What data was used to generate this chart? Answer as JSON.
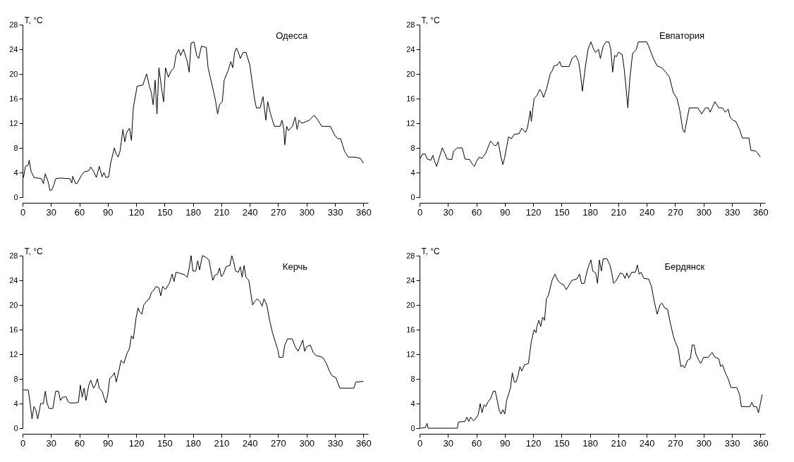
{
  "chart_data": [
    {
      "type": "line",
      "title": "Одесса",
      "ylabel": "T, °C",
      "color": "#000000",
      "xlim": [
        0,
        365
      ],
      "xticks": [
        0,
        30,
        60,
        90,
        120,
        150,
        180,
        210,
        240,
        270,
        300,
        330,
        360
      ],
      "ylim": [
        0,
        28
      ],
      "yticks": [
        0,
        4,
        8,
        12,
        16,
        20,
        24,
        28
      ],
      "x": [
        1,
        3,
        6,
        7,
        9,
        12,
        20,
        22,
        24,
        27,
        29,
        31,
        33,
        35,
        40,
        50,
        52,
        53,
        56,
        58,
        62,
        65,
        70,
        72,
        75,
        78,
        81,
        84,
        86,
        88,
        91,
        93,
        97,
        99,
        101,
        103,
        106,
        108,
        110,
        113,
        115,
        117,
        121,
        127,
        131,
        134,
        136,
        138,
        140,
        142,
        144,
        147,
        149,
        151,
        154,
        157,
        160,
        162,
        165,
        167,
        170,
        174,
        176,
        178,
        181,
        184,
        186,
        189,
        194,
        196,
        199,
        202,
        204,
        206,
        208,
        211,
        213,
        217,
        220,
        222,
        224,
        226,
        228,
        230,
        233,
        236,
        240,
        245,
        247,
        251,
        254,
        257,
        259,
        262,
        264,
        266,
        272,
        274,
        276,
        277,
        279,
        281,
        285,
        288,
        290,
        292,
        295,
        303,
        308,
        312,
        316,
        325,
        330,
        333,
        336,
        340,
        344,
        351,
        357,
        360
      ],
      "values": [
        3.2,
        5,
        5.2,
        6,
        4.2,
        3.2,
        3,
        2.2,
        3.8,
        2.5,
        1.1,
        1.2,
        2,
        3,
        3.1,
        3,
        2.3,
        3.4,
        2.2,
        2.3,
        3.5,
        4.1,
        4.3,
        4.9,
        4.2,
        3.2,
        5,
        3.3,
        4,
        3.2,
        3.3,
        5.5,
        8,
        7,
        6.5,
        7.5,
        11,
        9,
        10.5,
        11.2,
        9.2,
        14.5,
        18,
        18.2,
        20,
        18,
        17,
        15,
        19,
        13.5,
        21,
        17.5,
        15.5,
        21,
        19.5,
        20.5,
        21,
        23,
        24,
        23,
        24,
        22,
        20.3,
        25,
        25.2,
        23,
        22.5,
        24.5,
        24.3,
        21,
        19,
        17,
        15.5,
        13.5,
        15,
        15.5,
        19,
        20.5,
        22,
        21,
        23.5,
        24.2,
        23.5,
        22.5,
        23.5,
        23.5,
        21.5,
        16,
        14.5,
        14.5,
        16.3,
        12.5,
        15.5,
        13.5,
        12.5,
        11.5,
        11.5,
        12.5,
        11,
        8.5,
        11.5,
        10.8,
        11.5,
        13,
        11,
        12.5,
        12,
        12.5,
        13.3,
        12.5,
        11.5,
        11.5,
        10,
        9.5,
        9.5,
        7.5,
        6.5,
        6.5,
        6.3,
        5.5
      ]
    },
    {
      "type": "line",
      "title": "Евпатория",
      "ylabel": "T, °C",
      "color": "#000000",
      "xlim": [
        0,
        365
      ],
      "xticks": [
        0,
        30,
        60,
        90,
        120,
        150,
        180,
        210,
        240,
        270,
        300,
        330,
        360
      ],
      "ylim": [
        0,
        28
      ],
      "yticks": [
        0,
        4,
        8,
        12,
        16,
        20,
        24,
        28
      ],
      "x": [
        1,
        3,
        6,
        8,
        12,
        14,
        16,
        18,
        20,
        22,
        24,
        27,
        29,
        34,
        36,
        40,
        45,
        48,
        53,
        56,
        58,
        60,
        63,
        66,
        70,
        75,
        79,
        81,
        83,
        86,
        88,
        90,
        94,
        97,
        100,
        105,
        108,
        112,
        114,
        117,
        118,
        121,
        124,
        127,
        129,
        131,
        134,
        138,
        140,
        142,
        146,
        148,
        150,
        158,
        161,
        165,
        168,
        170,
        172,
        175,
        178,
        181,
        184,
        186,
        189,
        191,
        194,
        197,
        200,
        202,
        204,
        206,
        208,
        210,
        214,
        216,
        218,
        220,
        222,
        225,
        229,
        231,
        240,
        242,
        247,
        251,
        256,
        260,
        264,
        268,
        272,
        275,
        278,
        280,
        283,
        285,
        294,
        298,
        302,
        305,
        307,
        309,
        312,
        316,
        320,
        323,
        326,
        328,
        331,
        334,
        338,
        341,
        348,
        350,
        355,
        357,
        360
      ],
      "values": [
        6.3,
        7,
        7,
        6.2,
        6,
        6.8,
        5.8,
        5,
        6,
        7,
        8,
        7,
        6.2,
        6.1,
        7.5,
        8,
        8,
        6.2,
        6.1,
        5.3,
        5,
        5.8,
        6.5,
        6.3,
        7.2,
        9.1,
        8.4,
        8.4,
        9,
        6.5,
        5.3,
        6.5,
        9.8,
        9.5,
        10.2,
        10.3,
        11.2,
        10.5,
        11.3,
        14,
        12.3,
        16,
        16.5,
        17.5,
        17,
        16.2,
        17.5,
        20,
        20.5,
        21.3,
        21.5,
        22,
        21.2,
        21.2,
        22.5,
        23,
        22,
        20,
        17.2,
        21,
        24,
        25.2,
        24,
        23.5,
        24,
        22.5,
        24.5,
        25.2,
        25.2,
        24,
        20.3,
        23,
        22.8,
        23.5,
        23.2,
        21,
        18,
        14.5,
        19,
        23.3,
        24,
        25.2,
        25.2,
        24.5,
        22.5,
        21.3,
        21,
        20.3,
        19.5,
        17,
        16,
        14,
        11,
        10.5,
        13,
        14.5,
        14.5,
        13.5,
        14.5,
        14.5,
        13.8,
        14.5,
        15.5,
        14.5,
        14.5,
        13.8,
        14.3,
        13,
        12.5,
        12.3,
        11,
        9.6,
        9.6,
        7.6,
        7.5,
        7.2,
        6.5
      ]
    },
    {
      "type": "line",
      "title": "Керчь",
      "ylabel": "T, °C",
      "color": "#000000",
      "xlim": [
        0,
        365
      ],
      "xticks": [
        0,
        30,
        60,
        90,
        120,
        150,
        180,
        210,
        240,
        270,
        300,
        330,
        360
      ],
      "ylim": [
        0,
        28
      ],
      "yticks": [
        0,
        4,
        8,
        12,
        16,
        20,
        24,
        28
      ],
      "x": [
        1,
        6,
        8,
        10,
        12,
        14,
        16,
        18,
        19,
        22,
        24,
        26,
        28,
        32,
        35,
        38,
        40,
        42,
        46,
        48,
        50,
        56,
        59,
        61,
        63,
        65,
        67,
        70,
        72,
        75,
        77,
        79,
        81,
        84,
        86,
        88,
        90,
        92,
        95,
        97,
        99,
        102,
        104,
        107,
        110,
        113,
        115,
        117,
        120,
        122,
        124,
        126,
        128,
        132,
        134,
        136,
        139,
        141,
        144,
        146,
        148,
        151,
        155,
        158,
        160,
        162,
        165,
        171,
        174,
        176,
        178,
        180,
        183,
        185,
        187,
        190,
        193,
        197,
        199,
        201,
        203,
        206,
        208,
        210,
        212,
        215,
        219,
        221,
        223,
        225,
        228,
        230,
        232,
        234,
        236,
        239,
        241,
        243,
        245,
        248,
        251,
        253,
        255,
        258,
        261,
        264,
        267,
        270,
        271,
        275,
        277,
        280,
        285,
        288,
        291,
        294,
        296,
        298,
        300,
        304,
        307,
        310,
        317,
        321,
        324,
        327,
        331,
        335,
        346,
        350,
        352,
        360
      ],
      "values": [
        6.2,
        6.2,
        4,
        1.5,
        3.5,
        3,
        1.5,
        3,
        4,
        4,
        6,
        4,
        3.2,
        3.2,
        6,
        6,
        4.5,
        5,
        5.1,
        4.3,
        4.1,
        4.1,
        4.2,
        7,
        5,
        6.5,
        4.5,
        7,
        7.8,
        6.5,
        7,
        8,
        6.5,
        6,
        5,
        4.1,
        5.5,
        8,
        8.5,
        9,
        7.5,
        9.5,
        11,
        10.5,
        12,
        13,
        15,
        14.5,
        18,
        19.5,
        18.8,
        18.5,
        20,
        20.8,
        21,
        22,
        22.5,
        23,
        22.8,
        21.5,
        23,
        22.5,
        23.5,
        25,
        23.8,
        25.3,
        25.2,
        24.9,
        24.5,
        26,
        28,
        25.5,
        25.5,
        27.2,
        25.7,
        28,
        27.8,
        27.3,
        25.5,
        24,
        24.8,
        25,
        26,
        24.6,
        25,
        26.2,
        26.4,
        28,
        27,
        25.5,
        25.3,
        26.2,
        24.5,
        26.4,
        24.5,
        24,
        22,
        20,
        20.5,
        21,
        20.5,
        19.8,
        21,
        20,
        17.5,
        15.5,
        14,
        12.5,
        11.5,
        11.5,
        13.5,
        14.5,
        14.5,
        13.2,
        12.5,
        13.5,
        14.3,
        12.5,
        13.2,
        13.5,
        12.3,
        11.8,
        11.5,
        10.5,
        9.3,
        8.5,
        8.2,
        6.5,
        6.5,
        6.5,
        7.5,
        7.6
      ]
    },
    {
      "type": "line",
      "title": "Бердянск",
      "ylabel": "T, °C",
      "color": "#000000",
      "xlim": [
        0,
        365
      ],
      "xticks": [
        0,
        30,
        60,
        90,
        120,
        150,
        180,
        210,
        240,
        270,
        300,
        330,
        360
      ],
      "ylim": [
        0,
        28
      ],
      "yticks": [
        0,
        4,
        8,
        12,
        16,
        20,
        24,
        28
      ],
      "x": [
        1,
        6,
        8,
        9,
        20,
        35,
        40,
        41,
        48,
        50,
        52,
        54,
        57,
        59,
        62,
        64,
        66,
        68,
        70,
        72,
        75,
        78,
        80,
        82,
        84,
        86,
        88,
        90,
        92,
        96,
        98,
        100,
        102,
        104,
        106,
        108,
        111,
        115,
        118,
        121,
        123,
        124,
        126,
        128,
        130,
        132,
        134,
        136,
        140,
        143,
        146,
        149,
        152,
        155,
        157,
        161,
        166,
        169,
        171,
        174,
        177,
        179,
        181,
        183,
        186,
        188,
        190,
        192,
        194,
        198,
        201,
        203,
        205,
        208,
        212,
        215,
        217,
        219,
        221,
        224,
        228,
        230,
        232,
        234,
        237,
        242,
        245,
        248,
        251,
        254,
        256,
        259,
        262,
        265,
        268,
        270,
        273,
        276,
        278,
        280,
        283,
        286,
        288,
        290,
        292,
        295,
        297,
        300,
        305,
        309,
        312,
        316,
        318,
        320,
        323,
        326,
        329,
        335,
        338,
        340,
        349,
        351,
        353,
        356,
        358,
        360,
        362
      ],
      "values": [
        0,
        0.1,
        0.8,
        0,
        0,
        0,
        0,
        1,
        1.1,
        1.8,
        1.1,
        1.8,
        1.2,
        1.5,
        2.2,
        4,
        2.5,
        3.8,
        3.5,
        4.2,
        4.8,
        6,
        6,
        4.5,
        3,
        2.3,
        3,
        2.3,
        4.5,
        6.5,
        9,
        7.5,
        7.5,
        8.5,
        10,
        9.3,
        10.3,
        10.5,
        14,
        16,
        15.5,
        16.5,
        17.5,
        16.5,
        18,
        17.5,
        21,
        21.5,
        24,
        25,
        24,
        23.5,
        23.3,
        22.5,
        23,
        24,
        24.2,
        25,
        23.5,
        23.5,
        25.5,
        26.5,
        27.3,
        25.5,
        25.2,
        23.5,
        27.3,
        25.5,
        27.5,
        27.5,
        26.5,
        25.2,
        23.5,
        24,
        25.2,
        25,
        24.3,
        25.2,
        24.4,
        25.3,
        25.3,
        26.5,
        25,
        25.3,
        24.3,
        24.2,
        23,
        20.5,
        18.5,
        20,
        20.3,
        19.5,
        19.3,
        17,
        15,
        14,
        13,
        10,
        10.2,
        9.8,
        11,
        11.3,
        13.5,
        13.5,
        12,
        11,
        10.5,
        11.5,
        11.5,
        12.3,
        11.5,
        11.3,
        10,
        10.3,
        9,
        8,
        6.6,
        6.6,
        5.5,
        3.5,
        3.5,
        4.2,
        3.5,
        3.5,
        2.5,
        4,
        5.5
      ]
    }
  ]
}
